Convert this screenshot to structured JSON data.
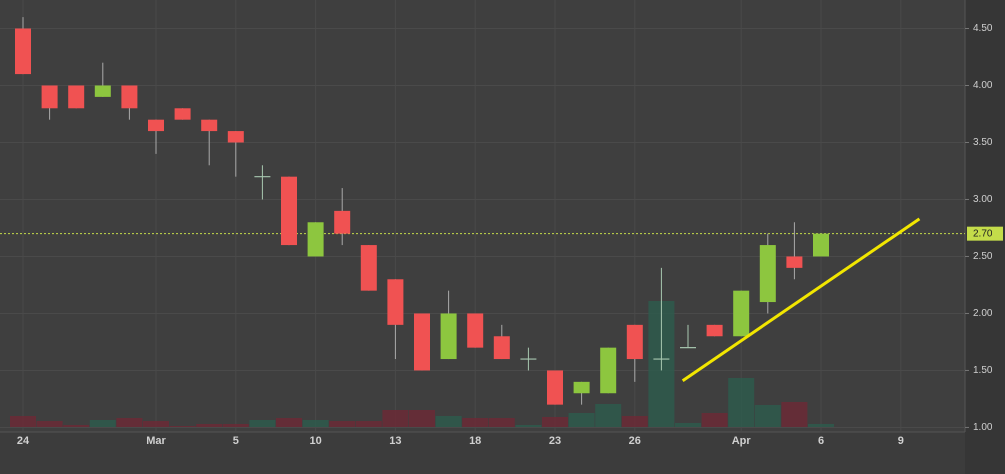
{
  "chart_data": {
    "type": "candlestick",
    "categories": [
      "24",
      null,
      null,
      null,
      null,
      "Mar",
      null,
      null,
      "5",
      null,
      null,
      "10",
      null,
      null,
      "13",
      null,
      null,
      "18",
      null,
      null,
      "23",
      null,
      null,
      "26",
      null,
      null,
      null,
      "Apr",
      null,
      null,
      "6",
      null,
      null,
      "9",
      null,
      null
    ],
    "open": [
      4.5,
      4.0,
      4.0,
      3.9,
      4.0,
      3.7,
      3.8,
      3.7,
      3.6,
      3.2,
      3.2,
      2.5,
      2.9,
      2.6,
      2.3,
      2.0,
      1.6,
      2.0,
      1.8,
      1.6,
      1.5,
      1.3,
      1.3,
      1.9,
      1.6,
      1.7,
      1.9,
      1.8,
      2.1,
      2.5,
      2.5,
      null,
      null,
      null,
      null,
      null
    ],
    "high": [
      4.6,
      4.0,
      4.0,
      4.2,
      4.0,
      3.7,
      3.8,
      3.7,
      3.6,
      3.3,
      3.2,
      2.8,
      3.1,
      2.6,
      2.3,
      2.0,
      2.2,
      2.0,
      1.9,
      1.7,
      1.5,
      1.4,
      1.7,
      1.9,
      2.4,
      1.9,
      1.9,
      2.2,
      2.7,
      2.8,
      2.7,
      null,
      null,
      null,
      null,
      null
    ],
    "low": [
      4.1,
      3.7,
      3.8,
      3.9,
      3.7,
      3.4,
      3.7,
      3.3,
      3.2,
      3.0,
      2.6,
      2.5,
      2.6,
      2.2,
      1.6,
      1.5,
      1.6,
      1.7,
      1.6,
      1.5,
      1.2,
      1.2,
      1.3,
      1.4,
      1.5,
      1.7,
      1.8,
      1.8,
      2.0,
      2.3,
      2.5,
      null,
      null,
      null,
      null,
      null
    ],
    "close": [
      4.1,
      3.8,
      3.8,
      4.0,
      3.8,
      3.6,
      3.7,
      3.6,
      3.5,
      3.2,
      2.6,
      2.8,
      2.7,
      2.2,
      1.9,
      1.5,
      2.0,
      1.7,
      1.6,
      1.6,
      1.2,
      1.4,
      1.7,
      1.6,
      1.6,
      1.7,
      1.8,
      2.2,
      2.6,
      2.4,
      2.7,
      null,
      null,
      null,
      null,
      null
    ],
    "volume": [
      11,
      6,
      2,
      7,
      9,
      6,
      1,
      3,
      3,
      7,
      9,
      7,
      6,
      6,
      17,
      17,
      11,
      9,
      9,
      2,
      10,
      14,
      23,
      11,
      126,
      4,
      14,
      49,
      22,
      25,
      3,
      null,
      null,
      null,
      null,
      null
    ],
    "up_color": "#8dc63f",
    "down_color": "#f05252",
    "doji_color": "#a8c8b0",
    "volume_up_color": "#2e5b4c",
    "volume_down_color": "#6b2a36",
    "ylim": [
      0.96,
      4.75
    ],
    "yticks": [
      {
        "value": 1.0,
        "label": "1.00"
      },
      {
        "value": 1.5,
        "label": "1.50"
      },
      {
        "value": 2.0,
        "label": "2.00"
      },
      {
        "value": 2.5,
        "label": "2.50"
      },
      {
        "value": 3.0,
        "label": "3.00"
      },
      {
        "value": 3.5,
        "label": "3.50"
      },
      {
        "value": 4.0,
        "label": "4.00"
      },
      {
        "value": 4.5,
        "label": "4.50"
      }
    ],
    "grid": true,
    "last_price": {
      "value": 2.7,
      "label": "2.70"
    },
    "last_price_color": "#c4dc4a",
    "trendline": {
      "x": [
        24.8,
        33.7
      ],
      "y": [
        1.41,
        2.83
      ],
      "color": "#f2e600"
    }
  }
}
